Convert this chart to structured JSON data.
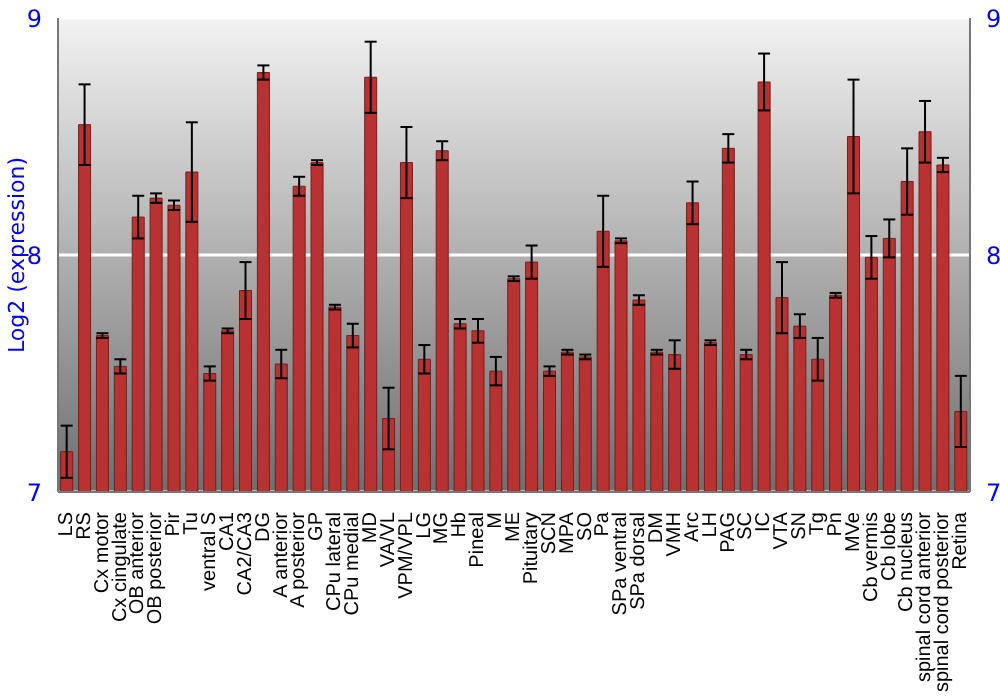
{
  "chart_data": {
    "type": "bar",
    "ylabel": "Log2 (expression)",
    "categories": [
      "LS",
      "RS",
      "Cx motor",
      "Cx cingulate",
      "OB anterior",
      "OB posterior",
      "Pir",
      "Tu",
      "ventral S",
      "CA1",
      "CA2/CA3",
      "DG",
      "A anterior",
      "A posterior",
      "GP",
      "CPu lateral",
      "CPu medial",
      "MD",
      "VA/VL",
      "VPM/VPL",
      "LG",
      "MG",
      "Hb",
      "Pineal",
      "M",
      "ME",
      "Pituitary",
      "SCN",
      "MPA",
      "SO",
      "Pa",
      "SPa ventral",
      "SPa dorsal",
      "DM",
      "VMH",
      "Arc",
      "LH",
      "PAG",
      "SC",
      "IC",
      "VTA",
      "SN",
      "Tg",
      "Pn",
      "MVe",
      "Cb vermis",
      "Cb lobe",
      "Cb nucleus",
      "spinal cord anterior",
      "spinal cord posterior",
      "Retina"
    ],
    "values": [
      7.17,
      8.55,
      7.66,
      7.53,
      8.16,
      8.24,
      8.21,
      8.35,
      7.5,
      7.68,
      7.85,
      8.77,
      7.54,
      8.29,
      8.39,
      7.78,
      7.66,
      8.75,
      7.31,
      8.39,
      7.56,
      8.44,
      7.71,
      7.68,
      7.51,
      7.9,
      7.97,
      7.51,
      7.59,
      7.57,
      8.1,
      8.06,
      7.81,
      7.59,
      7.58,
      8.22,
      7.63,
      8.45,
      7.58,
      8.73,
      7.82,
      7.7,
      7.56,
      7.83,
      8.5,
      7.99,
      8.07,
      8.31,
      8.52,
      8.38,
      7.34
    ],
    "errors": [
      0.11,
      0.17,
      0.01,
      0.03,
      0.09,
      0.02,
      0.02,
      0.21,
      0.03,
      0.01,
      0.12,
      0.03,
      0.06,
      0.04,
      0.01,
      0.01,
      0.05,
      0.15,
      0.13,
      0.15,
      0.06,
      0.04,
      0.02,
      0.05,
      0.06,
      0.01,
      0.07,
      0.02,
      0.01,
      0.01,
      0.15,
      0.01,
      0.02,
      0.01,
      0.06,
      0.09,
      0.01,
      0.06,
      0.02,
      0.12,
      0.15,
      0.05,
      0.09,
      0.01,
      0.24,
      0.09,
      0.08,
      0.14,
      0.13,
      0.03,
      0.15
    ],
    "color": "#b83232",
    "ylim": [
      7,
      9
    ],
    "yticks": [
      7,
      8,
      9
    ],
    "y2lim": [
      7,
      9
    ],
    "y2ticks": [
      7,
      8,
      9
    ],
    "grid": "y"
  }
}
